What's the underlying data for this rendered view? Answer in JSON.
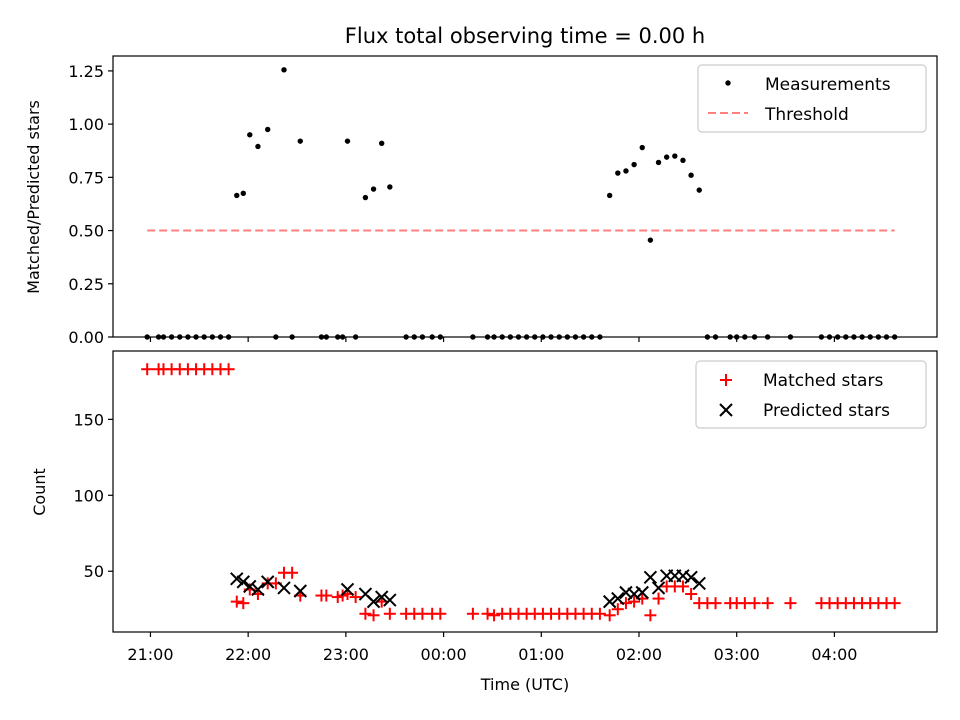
{
  "title": "Flux total observing time = 0.00 h",
  "colors": {
    "measurement": "#000000",
    "threshold": "#ff7f7f",
    "matched": "#ff0000",
    "predicted": "#000000"
  },
  "chart_data": [
    {
      "type": "scatter",
      "title": "Flux total observing time = 0.00 h",
      "xlabel": "",
      "ylabel": "Matched/Predicted stars",
      "xlim": [
        "20:37",
        "05:03"
      ],
      "ylim": [
        0,
        1.32
      ],
      "yticks": [
        "0.00",
        "0.25",
        "0.50",
        "0.75",
        "1.00",
        "1.25"
      ],
      "xticks": [
        "21:00",
        "22:00",
        "23:00",
        "00:00",
        "01:00",
        "02:00",
        "03:00",
        "04:00"
      ],
      "grid": false,
      "legend": "upper right",
      "legend_entries": [
        "Measurements",
        "Threshold"
      ],
      "threshold": {
        "value": 0.5,
        "x_start": "20:58",
        "x_end": "04:37"
      },
      "series": [
        {
          "name": "Measurements",
          "marker": "dot",
          "points": [
            [
              "20:58",
              0.0
            ],
            [
              "21:05",
              0.0
            ],
            [
              "21:08",
              0.0
            ],
            [
              "21:13",
              0.0
            ],
            [
              "21:18",
              0.0
            ],
            [
              "21:23",
              0.0
            ],
            [
              "21:28",
              0.0
            ],
            [
              "21:33",
              0.0
            ],
            [
              "21:38",
              0.0
            ],
            [
              "21:43",
              0.0
            ],
            [
              "21:48",
              0.0
            ],
            [
              "21:53",
              0.665
            ],
            [
              "21:57",
              0.675
            ],
            [
              "22:01",
              0.95
            ],
            [
              "22:06",
              0.895
            ],
            [
              "22:12",
              0.975
            ],
            [
              "22:17",
              0.0
            ],
            [
              "22:22",
              1.255
            ],
            [
              "22:27",
              0.0
            ],
            [
              "22:32",
              0.92
            ],
            [
              "22:45",
              0.0
            ],
            [
              "22:48",
              0.0
            ],
            [
              "22:55",
              0.0
            ],
            [
              "22:58",
              0.0
            ],
            [
              "23:01",
              0.92
            ],
            [
              "23:06",
              0.0
            ],
            [
              "23:12",
              0.655
            ],
            [
              "23:17",
              0.695
            ],
            [
              "23:22",
              0.91
            ],
            [
              "23:27",
              0.705
            ],
            [
              "23:37",
              0.0
            ],
            [
              "23:42",
              0.0
            ],
            [
              "23:47",
              0.0
            ],
            [
              "23:53",
              0.0
            ],
            [
              "23:58",
              0.0
            ],
            [
              "00:18",
              0.0
            ],
            [
              "00:27",
              0.0
            ],
            [
              "00:31",
              0.0
            ],
            [
              "00:36",
              0.0
            ],
            [
              "00:41",
              0.0
            ],
            [
              "00:46",
              0.0
            ],
            [
              "00:51",
              0.0
            ],
            [
              "00:56",
              0.0
            ],
            [
              "01:01",
              0.0
            ],
            [
              "01:06",
              0.0
            ],
            [
              "01:11",
              0.0
            ],
            [
              "01:16",
              0.0
            ],
            [
              "01:21",
              0.0
            ],
            [
              "01:26",
              0.0
            ],
            [
              "01:31",
              0.0
            ],
            [
              "01:36",
              0.0
            ],
            [
              "01:42",
              0.665
            ],
            [
              "01:47",
              0.77
            ],
            [
              "01:52",
              0.78
            ],
            [
              "01:57",
              0.81
            ],
            [
              "02:02",
              0.89
            ],
            [
              "02:07",
              0.455
            ],
            [
              "02:12",
              0.82
            ],
            [
              "02:17",
              0.845
            ],
            [
              "02:22",
              0.85
            ],
            [
              "02:27",
              0.83
            ],
            [
              "02:32",
              0.76
            ],
            [
              "02:37",
              0.69
            ],
            [
              "02:42",
              0.0
            ],
            [
              "02:47",
              0.0
            ],
            [
              "02:56",
              0.0
            ],
            [
              "03:00",
              0.0
            ],
            [
              "03:05",
              0.0
            ],
            [
              "03:11",
              0.0
            ],
            [
              "03:19",
              0.0
            ],
            [
              "03:33",
              0.0
            ],
            [
              "03:52",
              0.0
            ],
            [
              "03:57",
              0.0
            ],
            [
              "04:02",
              0.0
            ],
            [
              "04:07",
              0.0
            ],
            [
              "04:12",
              0.0
            ],
            [
              "04:17",
              0.0
            ],
            [
              "04:22",
              0.0
            ],
            [
              "04:27",
              0.0
            ],
            [
              "04:32",
              0.0
            ],
            [
              "04:37",
              0.0
            ]
          ]
        }
      ]
    },
    {
      "type": "scatter",
      "title": "",
      "xlabel": "Time (UTC)",
      "ylabel": "Count",
      "xlim": [
        "20:37",
        "05:03"
      ],
      "ylim": [
        10,
        195
      ],
      "yticks": [
        "50",
        "100",
        "150"
      ],
      "xticks": [
        "21:00",
        "22:00",
        "23:00",
        "00:00",
        "01:00",
        "02:00",
        "03:00",
        "04:00"
      ],
      "grid": false,
      "legend": "upper right",
      "legend_entries": [
        "Matched stars",
        "Predicted stars"
      ],
      "series": [
        {
          "name": "Matched stars",
          "marker": "plus",
          "points": [
            [
              "20:58",
              183
            ],
            [
              "21:05",
              183
            ],
            [
              "21:08",
              183
            ],
            [
              "21:13",
              183
            ],
            [
              "21:18",
              183
            ],
            [
              "21:23",
              183
            ],
            [
              "21:28",
              183
            ],
            [
              "21:33",
              183
            ],
            [
              "21:38",
              183
            ],
            [
              "21:43",
              183
            ],
            [
              "21:48",
              183
            ],
            [
              "21:53",
              30
            ],
            [
              "21:57",
              29
            ],
            [
              "22:01",
              38
            ],
            [
              "22:06",
              35
            ],
            [
              "22:12",
              42
            ],
            [
              "22:17",
              42
            ],
            [
              "22:22",
              49
            ],
            [
              "22:27",
              49
            ],
            [
              "22:32",
              34
            ],
            [
              "22:45",
              34
            ],
            [
              "22:48",
              34
            ],
            [
              "22:55",
              33
            ],
            [
              "22:58",
              34
            ],
            [
              "23:01",
              35
            ],
            [
              "23:06",
              33
            ],
            [
              "23:12",
              22
            ],
            [
              "23:17",
              21
            ],
            [
              "23:22",
              30
            ],
            [
              "23:27",
              22
            ],
            [
              "23:37",
              22
            ],
            [
              "23:42",
              22
            ],
            [
              "23:47",
              22
            ],
            [
              "23:53",
              22
            ],
            [
              "23:58",
              22
            ],
            [
              "00:18",
              22
            ],
            [
              "00:27",
              22
            ],
            [
              "00:31",
              21
            ],
            [
              "00:36",
              22
            ],
            [
              "00:41",
              22
            ],
            [
              "00:46",
              22
            ],
            [
              "00:51",
              22
            ],
            [
              "00:56",
              22
            ],
            [
              "01:01",
              22
            ],
            [
              "01:06",
              22
            ],
            [
              "01:11",
              22
            ],
            [
              "01:16",
              22
            ],
            [
              "01:21",
              22
            ],
            [
              "01:26",
              22
            ],
            [
              "01:31",
              22
            ],
            [
              "01:36",
              22
            ],
            [
              "01:42",
              21
            ],
            [
              "01:47",
              25
            ],
            [
              "01:52",
              29
            ],
            [
              "01:57",
              30
            ],
            [
              "02:02",
              32
            ],
            [
              "02:07",
              21
            ],
            [
              "02:12",
              32
            ],
            [
              "02:17",
              40
            ],
            [
              "02:22",
              40
            ],
            [
              "02:27",
              40
            ],
            [
              "02:32",
              35
            ],
            [
              "02:37",
              29
            ],
            [
              "02:42",
              29
            ],
            [
              "02:47",
              29
            ],
            [
              "02:56",
              29
            ],
            [
              "03:00",
              29
            ],
            [
              "03:05",
              29
            ],
            [
              "03:11",
              29
            ],
            [
              "03:19",
              29
            ],
            [
              "03:33",
              29
            ],
            [
              "03:52",
              29
            ],
            [
              "03:57",
              29
            ],
            [
              "04:02",
              29
            ],
            [
              "04:07",
              29
            ],
            [
              "04:12",
              29
            ],
            [
              "04:17",
              29
            ],
            [
              "04:22",
              29
            ],
            [
              "04:27",
              29
            ],
            [
              "04:32",
              29
            ],
            [
              "04:37",
              29
            ]
          ]
        },
        {
          "name": "Predicted stars",
          "marker": "x",
          "points": [
            [
              "21:53",
              45
            ],
            [
              "21:57",
              43
            ],
            [
              "22:01",
              40
            ],
            [
              "22:06",
              38
            ],
            [
              "22:12",
              43
            ],
            [
              "22:22",
              39
            ],
            [
              "22:32",
              37
            ],
            [
              "23:01",
              38
            ],
            [
              "23:12",
              35
            ],
            [
              "23:17",
              30
            ],
            [
              "23:22",
              33
            ],
            [
              "23:27",
              31
            ],
            [
              "01:42",
              30
            ],
            [
              "01:47",
              32
            ],
            [
              "01:52",
              36
            ],
            [
              "01:57",
              35
            ],
            [
              "02:02",
              36
            ],
            [
              "02:07",
              46
            ],
            [
              "02:12",
              39
            ],
            [
              "02:17",
              47
            ],
            [
              "02:22",
              47
            ],
            [
              "02:27",
              47
            ],
            [
              "02:32",
              46
            ],
            [
              "02:37",
              42
            ]
          ]
        }
      ]
    }
  ]
}
